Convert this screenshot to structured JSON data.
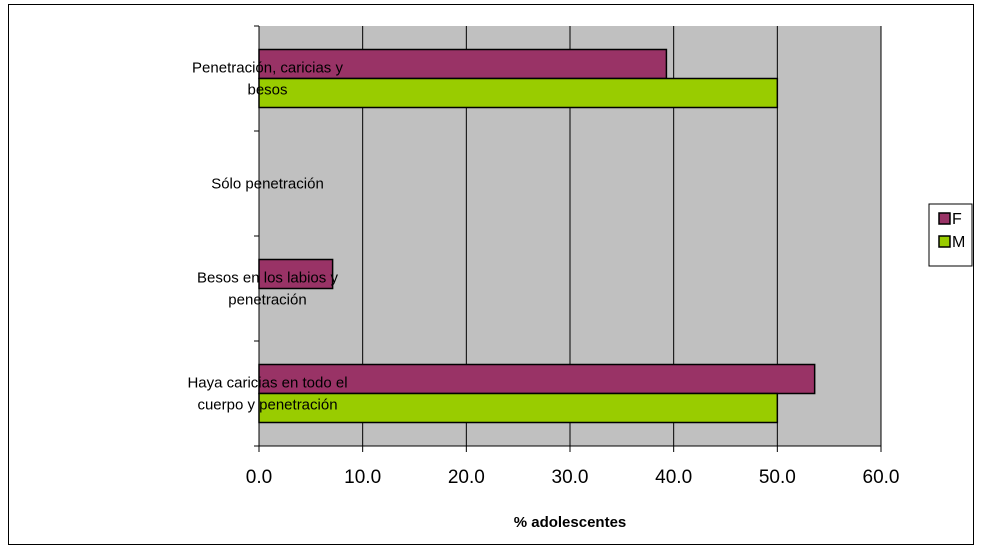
{
  "chart_data": {
    "type": "bar",
    "orientation": "horizontal",
    "categories": [
      [
        "Penetración, caricias y",
        "besos"
      ],
      [
        "Sólo penetración"
      ],
      [
        "Besos en los labios y",
        "penetración"
      ],
      [
        "Haya caricias en todo el",
        "cuerpo y penetración"
      ]
    ],
    "series": [
      {
        "name": "F",
        "color": "#993366",
        "values": [
          39.3,
          0,
          7.1,
          53.6
        ]
      },
      {
        "name": "M",
        "color": "#99CC00",
        "values": [
          50.0,
          0,
          0,
          50.0
        ]
      }
    ],
    "xlabel": "% adolescentes",
    "xlim": [
      0,
      60
    ],
    "xticks": [
      "0.0",
      "10.0",
      "20.0",
      "30.0",
      "40.0",
      "50.0",
      "60.0"
    ],
    "grid": true,
    "plot_background": "#C0C0C0",
    "legend_position": "right"
  }
}
